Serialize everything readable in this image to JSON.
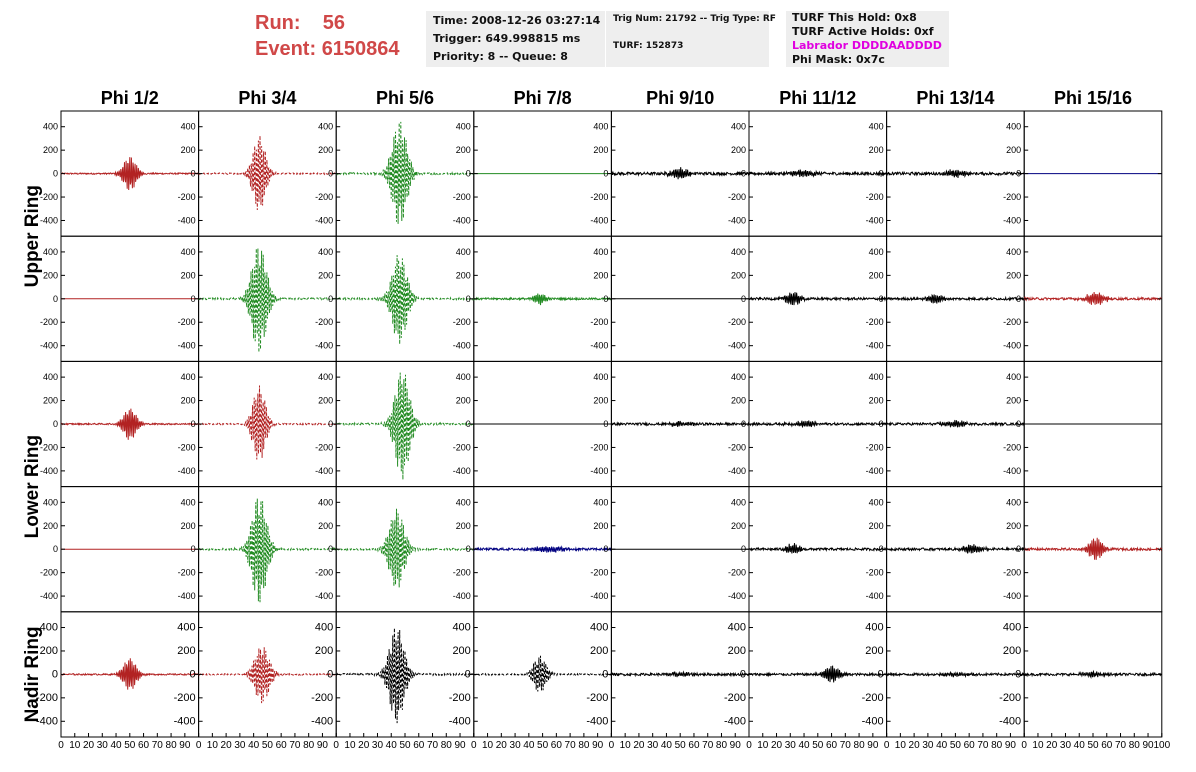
{
  "header": {
    "run_label": "Run:",
    "run_value": "56",
    "event_label": "Event:",
    "event_value": "6150864",
    "time": "Time: 2008-12-26 03:27:14",
    "trigger": "Trigger: 649.998815 ms",
    "priority": "Priority: 8 -- Queue: 8",
    "trig_num": "Trig Num: 21792 -- Trig Type: RF",
    "turf": "TURF: 152873",
    "turf_this_hold": "TURF This Hold: 0x8",
    "turf_active_holds": "TURF Active Holds: 0xf",
    "labrador": "Labrador DDDDAADDDD",
    "phi_mask": "Phi Mask: 0x7c"
  },
  "chart_data": {
    "type": "line",
    "columns": [
      "Phi 1/2",
      "Phi 3/4",
      "Phi 5/6",
      "Phi 7/8",
      "Phi 9/10",
      "Phi 11/12",
      "Phi 13/14",
      "Phi 15/16"
    ],
    "rows": [
      "Upper Ring",
      "Upper Ring",
      "Lower Ring",
      "Lower Ring",
      "Nadir Ring"
    ],
    "row_titles": [
      "Upper Ring",
      "Lower Ring",
      "Nadir Ring"
    ],
    "xlim": [
      0,
      100
    ],
    "ylim": [
      -500,
      500
    ],
    "y_ticks": [
      -400,
      -200,
      0,
      200,
      400
    ],
    "x_ticks": [
      0,
      10,
      20,
      30,
      40,
      50,
      60,
      70,
      80,
      90,
      100
    ],
    "panels": [
      [
        {
          "color": "#b22222",
          "style": "solid",
          "peak": 150,
          "center": 50,
          "width": 6,
          "noise": 6
        },
        {
          "color": "#b22222",
          "style": "dashed",
          "peak": 330,
          "center": 44,
          "width": 6,
          "noise": 6
        },
        {
          "color": "#228b22",
          "style": "dashed",
          "peak": 460,
          "center": 46,
          "width": 7,
          "noise": 8
        },
        {
          "color": "#228b22",
          "style": "solid",
          "peak": 0,
          "center": 50,
          "width": 5,
          "noise": 0
        },
        {
          "color": "#000000",
          "style": "solid",
          "peak": 45,
          "center": 50,
          "width": 8,
          "noise": 12
        },
        {
          "color": "#000000",
          "style": "solid",
          "peak": 30,
          "center": 40,
          "width": 10,
          "noise": 12
        },
        {
          "color": "#000000",
          "style": "solid",
          "peak": 30,
          "center": 50,
          "width": 10,
          "noise": 12
        },
        {
          "color": "#000080",
          "style": "solid",
          "peak": 0,
          "center": 50,
          "width": 5,
          "noise": 0
        }
      ],
      [
        {
          "color": "#b22222",
          "style": "solid",
          "peak": 0,
          "center": 50,
          "width": 5,
          "noise": 0
        },
        {
          "color": "#228b22",
          "style": "dashed",
          "peak": 470,
          "center": 44,
          "width": 7,
          "noise": 8
        },
        {
          "color": "#228b22",
          "style": "dashed",
          "peak": 390,
          "center": 46,
          "width": 7,
          "noise": 8
        },
        {
          "color": "#228b22",
          "style": "solid",
          "peak": 50,
          "center": 48,
          "width": 5,
          "noise": 8
        },
        {
          "color": "#000000",
          "style": "solid",
          "peak": 0,
          "center": 50,
          "width": 5,
          "noise": 0
        },
        {
          "color": "#000000",
          "style": "solid",
          "peak": 60,
          "center": 32,
          "width": 6,
          "noise": 10
        },
        {
          "color": "#000000",
          "style": "solid",
          "peak": 40,
          "center": 36,
          "width": 6,
          "noise": 10
        },
        {
          "color": "#b22222",
          "style": "solid",
          "peak": 55,
          "center": 52,
          "width": 8,
          "noise": 10
        }
      ],
      [
        {
          "color": "#b22222",
          "style": "solid",
          "peak": 140,
          "center": 50,
          "width": 6,
          "noise": 6
        },
        {
          "color": "#b22222",
          "style": "dashed",
          "peak": 330,
          "center": 44,
          "width": 6,
          "noise": 6
        },
        {
          "color": "#228b22",
          "style": "dashed",
          "peak": 470,
          "center": 48,
          "width": 7,
          "noise": 8
        },
        {
          "color": "#000000",
          "style": "solid",
          "peak": 0,
          "center": 50,
          "width": 5,
          "noise": 0
        },
        {
          "color": "#000000",
          "style": "solid",
          "peak": 20,
          "center": 50,
          "width": 10,
          "noise": 10
        },
        {
          "color": "#000000",
          "style": "solid",
          "peak": 25,
          "center": 40,
          "width": 10,
          "noise": 10
        },
        {
          "color": "#000000",
          "style": "solid",
          "peak": 25,
          "center": 50,
          "width": 10,
          "noise": 10
        },
        {
          "color": "#000000",
          "style": "solid",
          "peak": 0,
          "center": 50,
          "width": 5,
          "noise": 0
        }
      ],
      [
        {
          "color": "#b22222",
          "style": "solid",
          "peak": 0,
          "center": 50,
          "width": 5,
          "noise": 0
        },
        {
          "color": "#228b22",
          "style": "dashed",
          "peak": 470,
          "center": 44,
          "width": 7,
          "noise": 8
        },
        {
          "color": "#228b22",
          "style": "dashed",
          "peak": 350,
          "center": 44,
          "width": 7,
          "noise": 8
        },
        {
          "color": "#000080",
          "style": "solid",
          "peak": 25,
          "center": 55,
          "width": 12,
          "noise": 10
        },
        {
          "color": "#000000",
          "style": "solid",
          "peak": 0,
          "center": 50,
          "width": 5,
          "noise": 0
        },
        {
          "color": "#000000",
          "style": "solid",
          "peak": 45,
          "center": 32,
          "width": 6,
          "noise": 10
        },
        {
          "color": "#000000",
          "style": "solid",
          "peak": 40,
          "center": 62,
          "width": 8,
          "noise": 10
        },
        {
          "color": "#b22222",
          "style": "solid",
          "peak": 100,
          "center": 52,
          "width": 6,
          "noise": 10
        }
      ],
      [
        {
          "color": "#b22222",
          "style": "solid",
          "peak": 140,
          "center": 50,
          "width": 6,
          "noise": 6
        },
        {
          "color": "#b22222",
          "style": "dashed",
          "peak": 250,
          "center": 46,
          "width": 7,
          "noise": 6
        },
        {
          "color": "#000000",
          "style": "dashed",
          "peak": 420,
          "center": 44,
          "width": 7,
          "noise": 8
        },
        {
          "color": "#000000",
          "style": "dashed",
          "peak": 160,
          "center": 48,
          "width": 6,
          "noise": 6
        },
        {
          "color": "#000000",
          "style": "solid",
          "peak": 20,
          "center": 50,
          "width": 10,
          "noise": 10
        },
        {
          "color": "#000000",
          "style": "solid",
          "peak": 70,
          "center": 60,
          "width": 7,
          "noise": 10
        },
        {
          "color": "#000000",
          "style": "solid",
          "peak": 20,
          "center": 50,
          "width": 10,
          "noise": 10
        },
        {
          "color": "#000000",
          "style": "solid",
          "peak": 20,
          "center": 50,
          "width": 10,
          "noise": 10
        }
      ]
    ]
  }
}
